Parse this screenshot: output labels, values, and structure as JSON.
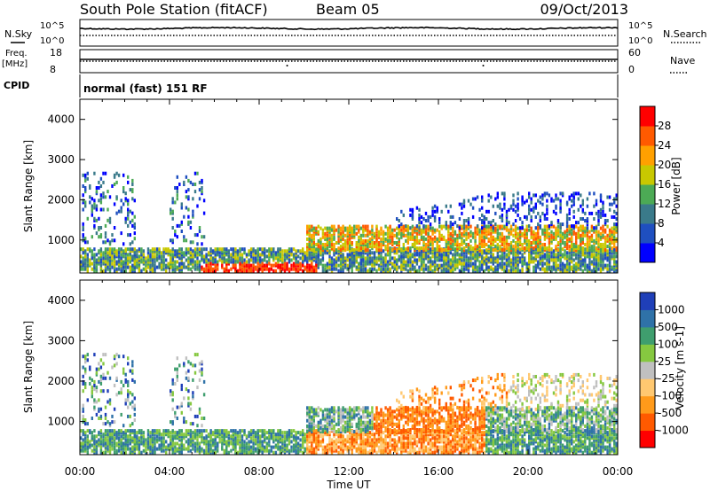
{
  "header": {
    "station": "South Pole Station (fitACF)",
    "beam": "Beam 05",
    "date": "09/Oct/2013"
  },
  "left_labels": {
    "nsky": "N.Sky",
    "freq": "Freq.",
    "freq_unit": "[MHz]",
    "cpid": "CPID"
  },
  "right_labels": {
    "nsearch": "N.Search",
    "nave": "Nave"
  },
  "scale_labels": {
    "noise_top": "10^5",
    "noise_bottom": "10^0",
    "freq_top": "18",
    "freq_bottom": "8",
    "nave_top": "60",
    "nave_bottom": "0"
  },
  "cpid_text": "normal (fast) 151 RF",
  "colors": {
    "power": [
      "#0000ff",
      "#1f4fc0",
      "#3a7a8a",
      "#4caa55",
      "#c8c800",
      "#ffa000",
      "#ff5a00",
      "#ff0000"
    ],
    "velocity": [
      "#ff0000",
      "#ff5a00",
      "#ff9a1a",
      "#ffc870",
      "#c0c0c0",
      "#86c840",
      "#3f9e6e",
      "#2f72a8",
      "#1f3fb8"
    ]
  },
  "chart_data": [
    {
      "type": "heatmap",
      "ylabel": "Slant Range [km]",
      "yticks": [
        1000,
        2000,
        3000,
        4000
      ],
      "ylim": [
        180,
        4500
      ],
      "xlim": [
        0,
        24
      ],
      "colorbar": {
        "label": "Power [dB]",
        "ticks": [
          "4",
          "8",
          "12",
          "16",
          "20",
          "24",
          "28"
        ],
        "range": [
          0,
          32
        ]
      }
    },
    {
      "type": "heatmap",
      "ylabel": "Slant Range [km]",
      "yticks": [
        1000,
        2000,
        3000,
        4000
      ],
      "ylim": [
        180,
        4500
      ],
      "xlim": [
        0,
        24
      ],
      "colorbar": {
        "label": "Velocity [m s-1]",
        "ticks": [
          "1000",
          "500",
          "100",
          "25",
          "-25",
          "-100",
          "-500",
          "-1000"
        ]
      }
    }
  ],
  "xaxis": {
    "label": "Time UT",
    "ticks": [
      "00:00",
      "04:00",
      "08:00",
      "12:00",
      "16:00",
      "20:00",
      "00:00"
    ]
  }
}
